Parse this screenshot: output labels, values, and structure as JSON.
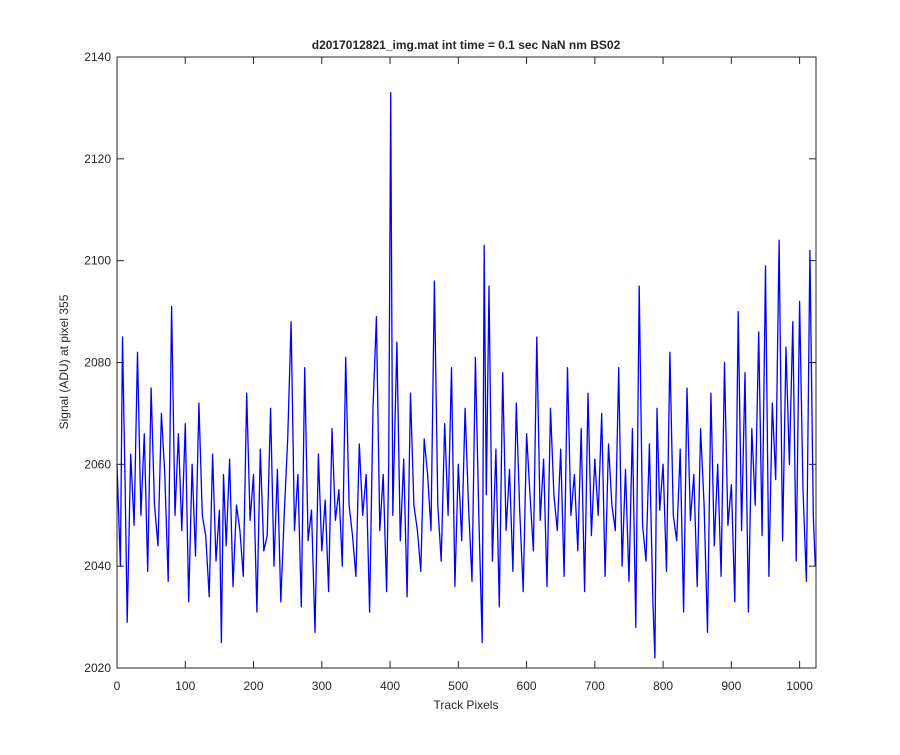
{
  "chart_data": {
    "type": "line",
    "title": "d2017012821_img.mat int time = 0.1 sec  NaN nm BS02",
    "xlabel": "Track Pixels",
    "ylabel": "Signal (ADU) at pixel 355",
    "xlim": [
      0,
      1024
    ],
    "ylim": [
      2020,
      2140
    ],
    "xticks": [
      0,
      100,
      200,
      300,
      400,
      500,
      600,
      700,
      800,
      900,
      1000
    ],
    "yticks": [
      2020,
      2040,
      2060,
      2080,
      2100,
      2120,
      2140
    ],
    "grid": false,
    "series": [
      {
        "color": "#0000ff",
        "x": [
          0,
          5,
          8,
          12,
          15,
          20,
          25,
          30,
          35,
          40,
          45,
          50,
          55,
          60,
          65,
          70,
          75,
          80,
          85,
          90,
          95,
          100,
          105,
          110,
          115,
          120,
          125,
          130,
          135,
          140,
          145,
          150,
          153,
          156,
          160,
          165,
          170,
          175,
          180,
          185,
          190,
          195,
          200,
          205,
          210,
          215,
          220,
          225,
          230,
          235,
          240,
          245,
          250,
          255,
          260,
          265,
          270,
          275,
          280,
          285,
          290,
          295,
          300,
          305,
          310,
          315,
          320,
          325,
          330,
          335,
          340,
          345,
          350,
          355,
          360,
          365,
          370,
          375,
          380,
          385,
          390,
          395,
          398,
          401,
          404,
          410,
          415,
          420,
          425,
          430,
          435,
          440,
          445,
          450,
          455,
          460,
          465,
          470,
          475,
          480,
          485,
          490,
          495,
          500,
          505,
          510,
          515,
          520,
          525,
          530,
          535,
          538,
          541,
          545,
          550,
          555,
          560,
          565,
          570,
          575,
          580,
          585,
          590,
          595,
          600,
          605,
          610,
          615,
          620,
          625,
          630,
          635,
          640,
          645,
          650,
          655,
          660,
          665,
          670,
          675,
          680,
          685,
          690,
          695,
          700,
          705,
          710,
          715,
          720,
          725,
          730,
          735,
          740,
          745,
          750,
          755,
          760,
          765,
          770,
          775,
          780,
          785,
          788,
          791,
          795,
          800,
          805,
          810,
          815,
          820,
          825,
          830,
          835,
          840,
          845,
          850,
          855,
          860,
          865,
          870,
          875,
          880,
          885,
          890,
          895,
          900,
          905,
          910,
          915,
          920,
          925,
          930,
          935,
          940,
          945,
          950,
          955,
          960,
          965,
          970,
          975,
          980,
          985,
          990,
          995,
          1000,
          1005,
          1010,
          1015,
          1020,
          1023
        ],
        "y": [
          2060,
          2040,
          2085,
          2055,
          2029,
          2062,
          2048,
          2082,
          2050,
          2066,
          2039,
          2075,
          2052,
          2044,
          2070,
          2058,
          2037,
          2091,
          2050,
          2066,
          2047,
          2068,
          2033,
          2060,
          2042,
          2072,
          2050,
          2046,
          2034,
          2062,
          2041,
          2051,
          2025,
          2058,
          2044,
          2061,
          2036,
          2052,
          2047,
          2038,
          2074,
          2049,
          2058,
          2031,
          2063,
          2043,
          2046,
          2071,
          2040,
          2059,
          2033,
          2050,
          2065,
          2088,
          2047,
          2058,
          2032,
          2079,
          2045,
          2051,
          2027,
          2062,
          2043,
          2053,
          2035,
          2067,
          2049,
          2055,
          2040,
          2081,
          2052,
          2046,
          2038,
          2064,
          2050,
          2058,
          2031,
          2071,
          2089,
          2047,
          2058,
          2035,
          2060,
          2133,
          2050,
          2084,
          2045,
          2061,
          2034,
          2074,
          2052,
          2047,
          2039,
          2065,
          2058,
          2047,
          2096,
          2052,
          2041,
          2068,
          2050,
          2079,
          2036,
          2060,
          2045,
          2071,
          2052,
          2037,
          2081,
          2050,
          2025,
          2103,
          2054,
          2095,
          2041,
          2063,
          2032,
          2078,
          2047,
          2059,
          2039,
          2072,
          2051,
          2035,
          2066,
          2054,
          2043,
          2085,
          2049,
          2061,
          2036,
          2071,
          2054,
          2047,
          2063,
          2038,
          2079,
          2050,
          2058,
          2043,
          2067,
          2035,
          2074,
          2046,
          2061,
          2050,
          2070,
          2038,
          2064,
          2052,
          2047,
          2079,
          2040,
          2059,
          2037,
          2067,
          2028,
          2095,
          2048,
          2041,
          2064,
          2033,
          2022,
          2071,
          2051,
          2060,
          2039,
          2082,
          2050,
          2045,
          2063,
          2031,
          2075,
          2049,
          2058,
          2036,
          2067,
          2052,
          2027,
          2074,
          2044,
          2060,
          2038,
          2080,
          2048,
          2056,
          2033,
          2090,
          2047,
          2078,
          2031,
          2067,
          2052,
          2086,
          2046,
          2099,
          2038,
          2072,
          2057,
          2104,
          2045,
          2083,
          2060,
          2088,
          2041,
          2092,
          2055,
          2037,
          2102,
          2050,
          2040
        ]
      }
    ]
  }
}
